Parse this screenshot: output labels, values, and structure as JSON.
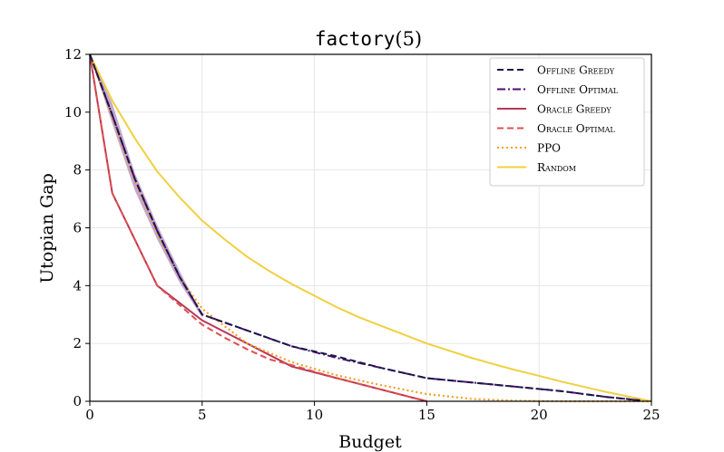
{
  "chart_data": {
    "type": "line",
    "title_func": "factory",
    "title_arg": "(5)",
    "xlabel": "Budget",
    "ylabel": "Utopian Gap",
    "xlim": [
      0,
      25
    ],
    "ylim": [
      0,
      12
    ],
    "xticks": [
      0,
      5,
      10,
      15,
      20,
      25
    ],
    "yticks": [
      0,
      2,
      4,
      6,
      8,
      10,
      12
    ],
    "grid": true,
    "legend_position": "top-right",
    "band": {
      "x": [
        0,
        1,
        2,
        3,
        4,
        5
      ],
      "upper": [
        12,
        10.3,
        7.9,
        6.1,
        4.5,
        3.0
      ],
      "lower": [
        12,
        9.6,
        7.3,
        5.6,
        4.1,
        2.9
      ],
      "color": "#7b3f9a"
    },
    "series": [
      {
        "name": "Offline Greedy",
        "color": "#1a1848",
        "dash": "dashed",
        "x": [
          0,
          1,
          2,
          3,
          4,
          5,
          7,
          9,
          11,
          13,
          15,
          17,
          19,
          21,
          23,
          24.5
        ],
        "y": [
          12,
          9.9,
          7.7,
          5.9,
          4.3,
          3.0,
          2.45,
          1.9,
          1.55,
          1.15,
          0.8,
          0.65,
          0.5,
          0.35,
          0.15,
          0.03
        ]
      },
      {
        "name": "Offline Optimal",
        "color": "#4a0f6e",
        "dash": "dashdot",
        "x": [
          0,
          1,
          2,
          3,
          4,
          5,
          7,
          9,
          11,
          13,
          15,
          17,
          19,
          21,
          23,
          24.5
        ],
        "y": [
          12,
          9.9,
          7.7,
          5.9,
          4.3,
          3.0,
          2.45,
          1.9,
          1.5,
          1.15,
          0.8,
          0.65,
          0.5,
          0.35,
          0.15,
          0.03
        ]
      },
      {
        "name": "Oracle Greedy",
        "color": "#b8365a",
        "dash": "solid",
        "x": [
          0,
          1,
          3,
          5,
          7,
          9,
          11,
          13,
          15
        ],
        "y": [
          12,
          7.2,
          4.0,
          2.8,
          2.0,
          1.2,
          0.8,
          0.4,
          0.0
        ]
      },
      {
        "name": "Oracle Optimal",
        "color": "#e0504e",
        "dash": "dashed",
        "x": [
          0,
          1,
          3,
          5,
          6,
          7,
          8,
          9,
          11,
          13,
          15
        ],
        "y": [
          12,
          7.2,
          4.0,
          2.65,
          2.2,
          1.8,
          1.45,
          1.25,
          0.8,
          0.4,
          0.0
        ]
      },
      {
        "name": "PPO",
        "color": "#f4a020",
        "dash": "dotted",
        "x": [
          0,
          1,
          2,
          3,
          4,
          5,
          7,
          9,
          11,
          13,
          15,
          17,
          19,
          21,
          23,
          25
        ],
        "y": [
          12,
          9.8,
          7.6,
          5.8,
          4.3,
          3.2,
          2.0,
          1.35,
          0.9,
          0.55,
          0.25,
          0.08,
          0.02,
          0.0,
          0.0,
          0.0
        ]
      },
      {
        "name": "Random",
        "color": "#f0d040",
        "dash": "solid",
        "x": [
          0,
          1,
          2,
          3,
          4,
          5,
          6,
          7,
          8,
          9,
          10,
          11,
          12,
          13,
          14,
          15,
          16,
          17,
          18,
          19,
          20,
          21,
          22,
          23,
          24,
          25
        ],
        "y": [
          12,
          10.4,
          9.1,
          7.95,
          7.05,
          6.25,
          5.6,
          5.0,
          4.5,
          4.05,
          3.65,
          3.25,
          2.9,
          2.6,
          2.3,
          2.0,
          1.75,
          1.5,
          1.28,
          1.07,
          0.88,
          0.68,
          0.5,
          0.32,
          0.16,
          0.0
        ]
      }
    ]
  }
}
